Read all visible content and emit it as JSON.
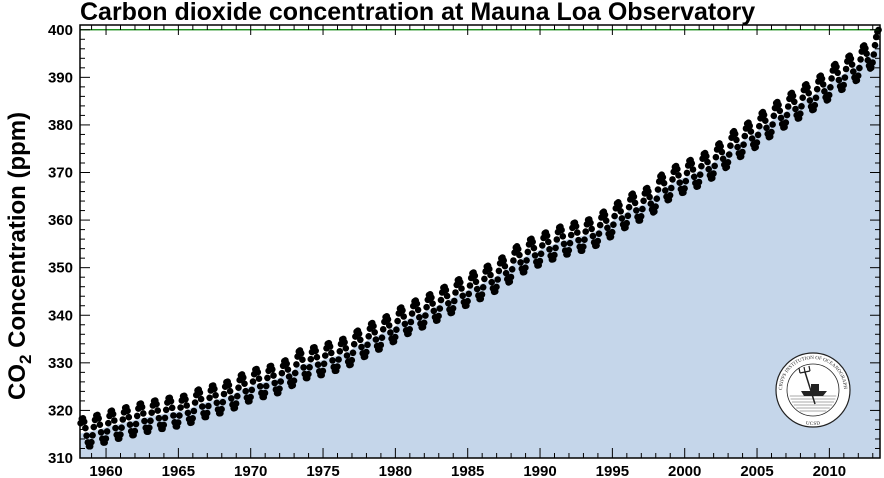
{
  "chart_data": {
    "type": "scatter",
    "title": "Carbon dioxide concentration at Mauna Loa Observatory",
    "ylabel": "CO",
    "ylabel_sub": "2",
    "ylabel_rest": " Concentration (ppm)",
    "xlabel": "",
    "xlim": [
      1958.2,
      2013.5
    ],
    "ylim": [
      310,
      401
    ],
    "x_ticks": [
      "1960",
      "1965",
      "1970",
      "1975",
      "1980",
      "1985",
      "1990",
      "1995",
      "2000",
      "2005",
      "2010"
    ],
    "y_ticks": [
      "310",
      "320",
      "330",
      "340",
      "350",
      "360",
      "370",
      "380",
      "390",
      "400"
    ],
    "reference_line": {
      "value": 400,
      "color": "#008000"
    },
    "fill_color": "#c5d6ea",
    "marker_color": "#000000",
    "series": [
      {
        "x": [
          1958.5,
          1959.5,
          1960.5,
          1961.5,
          1962.5,
          1963.5,
          1964.5,
          1965.5,
          1966.5,
          1967.5,
          1968.5,
          1969.5,
          1970.5,
          1971.5,
          1972.5,
          1973.5,
          1974.5,
          1975.5,
          1976.5,
          1977.5,
          1978.5,
          1979.5,
          1980.5,
          1981.5,
          1982.5,
          1983.5,
          1984.5,
          1985.5,
          1986.5,
          1987.5,
          1988.5,
          1989.5,
          1990.5,
          1991.5,
          1992.5,
          1993.5,
          1994.5,
          1995.5,
          1996.5,
          1997.5,
          1998.5,
          1999.5,
          2000.5,
          2001.5,
          2002.5,
          2003.5,
          2004.5,
          2005.5,
          2006.5,
          2007.5,
          2008.5,
          2009.5,
          2010.5,
          2011.5,
          2012.5,
          2013.3
        ],
        "values": [
          315.3,
          316.0,
          316.9,
          317.6,
          318.4,
          319.0,
          319.6,
          320.0,
          321.4,
          322.2,
          323.0,
          324.6,
          325.7,
          326.3,
          327.5,
          329.7,
          330.2,
          331.1,
          332.0,
          333.8,
          335.4,
          336.8,
          338.7,
          340.1,
          341.4,
          343.0,
          344.6,
          346.0,
          347.4,
          349.2,
          351.6,
          353.1,
          354.4,
          355.6,
          356.4,
          357.1,
          358.8,
          360.8,
          362.6,
          363.7,
          366.7,
          368.4,
          369.6,
          371.1,
          373.2,
          375.8,
          377.5,
          379.8,
          381.9,
          383.8,
          385.6,
          387.4,
          389.9,
          391.6,
          393.8,
          396.5
        ],
        "seasonal_amplitude_ppm": 3.2
      }
    ],
    "grid": false,
    "legend": "none"
  },
  "logo": {
    "name": "Scripps Institution of Oceanography UCSD seal",
    "text_top": "SCRIPPS INSTITUTION OF OCEANOGRAPHY",
    "text_bottom": "UCSD"
  }
}
